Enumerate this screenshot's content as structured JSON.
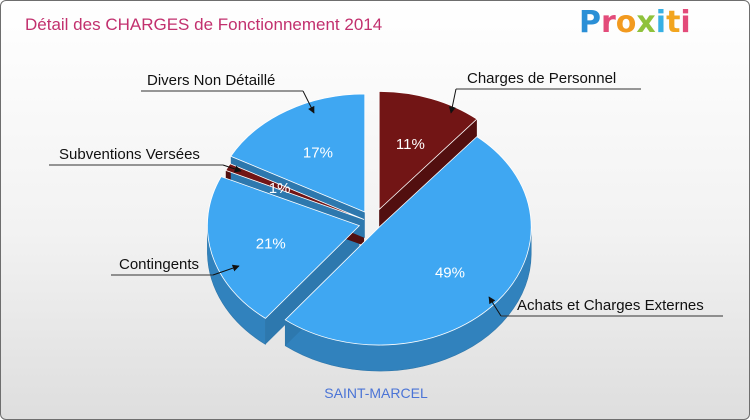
{
  "header": {
    "title": "Détail des CHARGES de Fonctionnement 2014"
  },
  "logo": {
    "text": "Proxiti",
    "letters": [
      "P",
      "r",
      "o",
      "x",
      "i",
      "t",
      "i"
    ]
  },
  "footer": {
    "commune": "SAINT-MARCEL"
  },
  "chart_data": {
    "type": "pie",
    "title": "Détail des CHARGES de Fonctionnement 2014",
    "subtitle": "SAINT-MARCEL",
    "slices": [
      {
        "label": "Charges de Personnel",
        "value": 11,
        "pct_label": "11%",
        "color": "#721515"
      },
      {
        "label": "Achats et Charges Externes",
        "value": 49,
        "pct_label": "49%",
        "color": "#3fa7f2"
      },
      {
        "label": "Contingents",
        "value": 21,
        "pct_label": "21%",
        "color": "#3fa7f2"
      },
      {
        "label": "Subventions Versées",
        "value": 1,
        "pct_label": "1%",
        "color": "#721515"
      },
      {
        "label": "Divers Non Détaillé",
        "value": 17,
        "pct_label": "17%",
        "color": "#3fa7f2"
      }
    ],
    "style": "3d-exploded"
  }
}
